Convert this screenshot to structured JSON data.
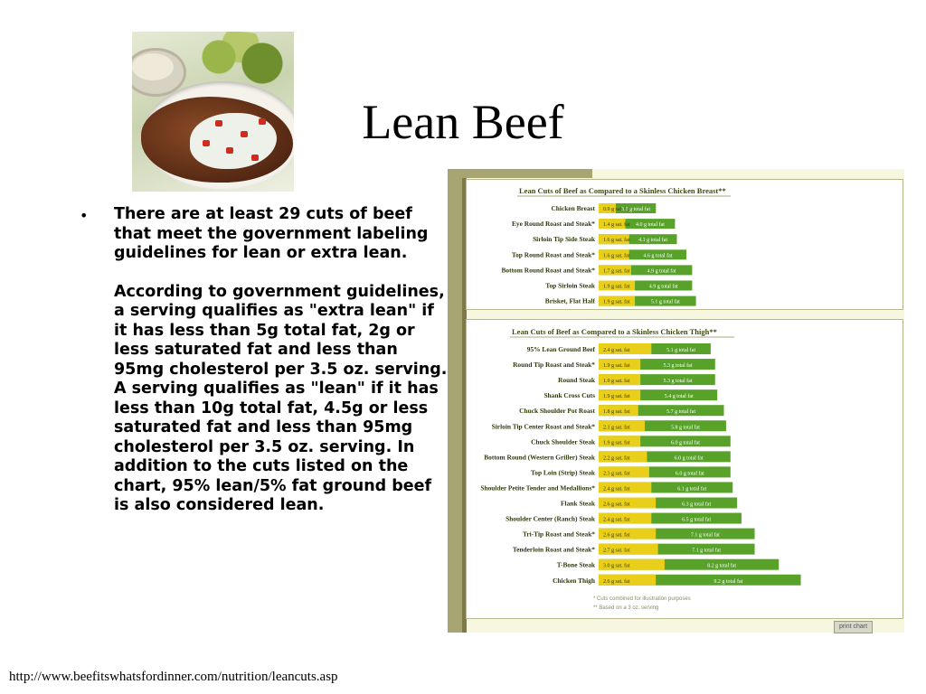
{
  "slide": {
    "title": "Lean Beef",
    "bullet_p1": "There are at least 29 cuts of beef that meet the government labeling guidelines for lean or extra lean.",
    "bullet_p2": "According to government guidelines, a serving qualifies as \"extra lean\" if it has less than 5g total fat, 2g or less saturated fat and less than 95mg cholesterol per 3.5 oz. serving. A serving qualifies as \"lean\" if it has less than 10g total fat, 4.5g or less saturated fat and less than 95mg cholesterol per 3.5 oz. serving. In addition to the cuts listed on the chart, 95% lean/5% fat ground beef is also considered lean.",
    "bullet_glyph": "•",
    "footer_url": "http://www.beefitswhatsfordinner.com/nutrition/leancuts.asp",
    "photo_icon": "steak-photo"
  },
  "chart_colors": {
    "sat_fat": "#e9cf19",
    "total_fat": "#58a22a",
    "heading": "#3e4b12",
    "label": "#2d3a0c"
  },
  "chart_data": [
    {
      "type": "bar",
      "title": "Lean Cuts of Beef as Compared to a Skinless Chicken Breast**",
      "categories": [
        "Chicken Breast",
        "Eye Round Roast and Steak*",
        "Sirloin Tip Side Steak",
        "Top Round Roast and Steak*",
        "Bottom Round Roast and Steak*",
        "Top Sirloin Steak",
        "Brisket, Flat Half"
      ],
      "series": [
        {
          "name": "sat. fat",
          "values": [
            0.9,
            1.4,
            1.6,
            1.6,
            1.7,
            1.9,
            1.9
          ],
          "labels": [
            "0.9 g sat. fat",
            "1.4 g sat. fat",
            "1.6 g sat. fat",
            "1.6 g sat. fat",
            "1.7 g sat. fat",
            "1.9 g sat. fat",
            "1.9 g sat. fat"
          ]
        },
        {
          "name": "total fat",
          "values": [
            3.0,
            4.0,
            4.1,
            4.6,
            4.9,
            4.9,
            5.1
          ],
          "labels": [
            "3.0 g total fat",
            "4.0 g total fat",
            "4.1 g total fat",
            "4.6 g total fat",
            "4.9 g total fat",
            "4.9 g total fat",
            "5.1 g total fat"
          ]
        }
      ]
    },
    {
      "type": "bar",
      "title": "Lean Cuts of Beef as Compared to a Skinless Chicken Thigh**",
      "categories": [
        "95% Lean Ground Beef",
        "Round Tip Roast and Steak*",
        "Round Steak",
        "Shank Cross Cuts",
        "Chuck Shoulder Pot Roast",
        "Sirloin Tip Center Roast and Steak*",
        "Chuck Shoulder Steak",
        "Bottom Round (Western Griller) Steak",
        "Top Loin (Strip) Steak",
        "Shoulder Petite Tender and Medallions*",
        "Flank Steak",
        "Shoulder Center (Ranch) Steak",
        "Tri-Tip Roast and Steak*",
        "Tenderloin Roast and Steak*",
        "T-Bone Steak",
        "Chicken Thigh"
      ],
      "series": [
        {
          "name": "sat. fat",
          "values": [
            2.4,
            1.9,
            1.9,
            1.9,
            1.8,
            2.1,
            1.9,
            2.2,
            2.3,
            2.4,
            2.6,
            2.4,
            2.6,
            2.7,
            3.0,
            2.6
          ],
          "labels": [
            "2.4 g sat. fat",
            "1.9 g sat. fat",
            "1.9 g sat. fat",
            "1.9 g sat. fat",
            "1.8 g sat. fat",
            "2.1 g sat. fat",
            "1.9 g sat. fat",
            "2.2 g sat. fat",
            "2.3 g sat. fat",
            "2.4 g sat. fat",
            "2.6 g sat. fat",
            "2.4 g sat. fat",
            "2.6 g sat. fat",
            "2.7 g sat. fat",
            "3.0 g sat. fat",
            "2.6 g sat. fat"
          ]
        },
        {
          "name": "total fat",
          "values": [
            5.1,
            5.3,
            5.3,
            5.4,
            5.7,
            5.8,
            6.0,
            6.0,
            6.0,
            6.1,
            6.3,
            6.5,
            7.1,
            7.1,
            8.2,
            9.2
          ],
          "labels": [
            "5.1 g total fat",
            "5.3 g total fat",
            "5.3 g total fat",
            "5.4 g total fat",
            "5.7 g total fat",
            "5.8 g total fat",
            "6.0 g total fat",
            "6.0 g total fat",
            "6.0 g total fat",
            "6.1 g total fat",
            "6.3 g total fat",
            "6.5 g total fat",
            "7.1 g total fat",
            "7.1 g total fat",
            "8.2 g total fat",
            "9.2 g total fat"
          ]
        }
      ],
      "footnotes": [
        "* Cuts combined for illustration purposes",
        "** Based on a 3 oz. serving"
      ]
    }
  ],
  "chart_ui": {
    "print_label": "print chart"
  }
}
